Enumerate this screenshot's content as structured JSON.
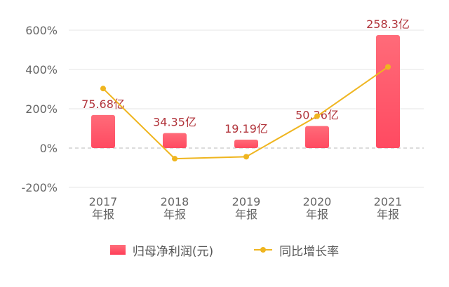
{
  "chart_data": {
    "type": "bar",
    "categories": [
      "2017\n年报",
      "2018\n年报",
      "2019\n年报",
      "2020\n年报",
      "2021\n年报"
    ],
    "y_ticks": [
      "600%",
      "400%",
      "200%",
      "0%",
      "-200%"
    ],
    "ylim": [
      -200,
      600
    ],
    "grid": true,
    "legend_position": "bottom-center",
    "series": [
      {
        "name": "归母净利润(元)",
        "type": "bar",
        "values": [
          75.68,
          34.35,
          19.19,
          50.36,
          258.3
        ],
        "labels": [
          "75.68亿",
          "34.35亿",
          "19.19亿",
          "50.36亿",
          "258.3亿"
        ],
        "color": "#ff4a61"
      },
      {
        "name": "同比增长率",
        "type": "line",
        "values": [
          303,
          -54,
          -44,
          162,
          413
        ],
        "color": "#efb51f"
      }
    ],
    "bar_label_color": "#b1343b",
    "grid_color": "#e4e4e4",
    "axis_text_color": "#666666",
    "zero_line_color": "#b8b8b8"
  }
}
